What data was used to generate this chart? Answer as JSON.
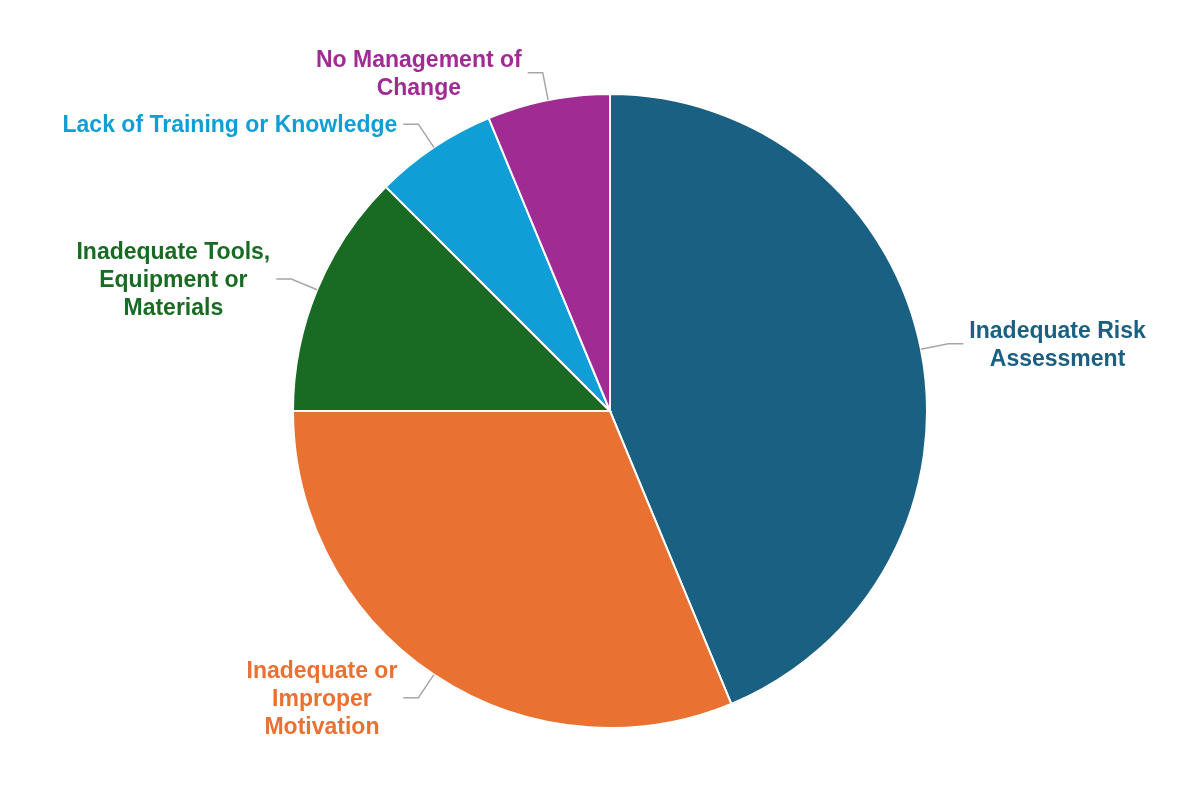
{
  "chart_data": {
    "type": "pie",
    "categories": [
      "Inadequate Risk Assessment",
      "Inadequate or Improper Motivation",
      "Inadequate Tools, Equipment or Materials",
      "Lack of Training or Knowledge",
      "No Management of Change"
    ],
    "values": [
      43.75,
      31.25,
      12.5,
      6.25,
      6.25
    ],
    "colors": [
      "#1a6082",
      "#e97132",
      "#196b24",
      "#0f9ed5",
      "#a02b93"
    ]
  }
}
